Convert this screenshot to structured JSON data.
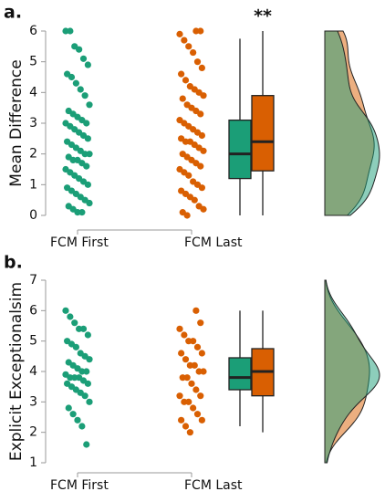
{
  "chart_data": [
    {
      "type": "raincloud",
      "panel_label": "a.",
      "ylabel": "Mean Difference",
      "annotation": "**",
      "categories": [
        "FCM First",
        "FCM Last"
      ],
      "ylim": [
        0,
        6
      ],
      "yticks": [
        0,
        1,
        2,
        3,
        4,
        5,
        6
      ],
      "groups": [
        {
          "color": "#1b9e77",
          "points": [
            6,
            6,
            5.5,
            5.4,
            5.1,
            4.9,
            4.6,
            4.5,
            4.3,
            4.1,
            3.9,
            3.6,
            3.4,
            3.3,
            3.2,
            3.1,
            3.0,
            3.0,
            2.9,
            2.8,
            2.7,
            2.6,
            2.5,
            2.4,
            2.3,
            2.2,
            2.1,
            2.0,
            2.0,
            1.9,
            1.8,
            1.8,
            1.7,
            1.6,
            1.5,
            1.4,
            1.3,
            1.2,
            1.1,
            1.0,
            0.9,
            0.8,
            0.7,
            0.6,
            0.5,
            0.4,
            0.3,
            0.2,
            0.1,
            0.1
          ],
          "box": {
            "min": 0,
            "q1": 1.2,
            "median": 2.0,
            "q3": 3.1,
            "max": 5.75
          }
        },
        {
          "color": "#d95f02",
          "points": [
            6,
            6,
            5.9,
            5.7,
            5.5,
            5.3,
            5.0,
            4.8,
            4.6,
            4.4,
            4.2,
            4.1,
            4.0,
            3.9,
            3.8,
            3.6,
            3.5,
            3.4,
            3.3,
            3.1,
            3.0,
            2.9,
            2.8,
            2.7,
            2.6,
            2.5,
            2.4,
            2.4,
            2.3,
            2.2,
            2.1,
            2.0,
            1.9,
            1.8,
            1.7,
            1.6,
            1.5,
            1.4,
            1.3,
            1.1,
            1.0,
            0.9,
            0.8,
            0.7,
            0.6,
            0.5,
            0.3,
            0.2,
            0.1,
            0
          ],
          "box": {
            "min": 0,
            "q1": 1.45,
            "median": 2.4,
            "q3": 3.9,
            "max": 6
          }
        }
      ]
    },
    {
      "type": "raincloud",
      "panel_label": "b.",
      "ylabel": "Explicit Exceptionalsim",
      "categories": [
        "FCM First",
        "FCM Last"
      ],
      "ylim": [
        1,
        7
      ],
      "yticks": [
        1,
        2,
        3,
        4,
        5,
        6,
        7
      ],
      "groups": [
        {
          "color": "#1b9e77",
          "points": [
            6,
            5.8,
            5.6,
            5.4,
            5.4,
            5.2,
            5.0,
            4.9,
            4.8,
            4.6,
            4.5,
            4.4,
            4.3,
            4.2,
            4.1,
            4.0,
            4.0,
            3.9,
            3.8,
            3.8,
            3.8,
            3.7,
            3.6,
            3.6,
            3.5,
            3.4,
            3.3,
            3.2,
            3.0,
            2.8,
            2.6,
            2.4,
            2.2,
            1.6
          ],
          "box": {
            "min": 2.2,
            "q1": 3.4,
            "median": 3.8,
            "q3": 4.45,
            "max": 6
          }
        },
        {
          "color": "#d95f02",
          "points": [
            6,
            5.6,
            5.4,
            5.2,
            5.0,
            5.0,
            4.8,
            4.6,
            4.6,
            4.4,
            4.2,
            4.2,
            4.0,
            4.0,
            3.8,
            3.8,
            3.6,
            3.4,
            3.2,
            3.2,
            3.0,
            3.0,
            2.8,
            2.6,
            2.4,
            2.4,
            2.2,
            2.0
          ],
          "box": {
            "min": 2,
            "q1": 3.2,
            "median": 4.0,
            "q3": 4.75,
            "max": 6
          }
        }
      ]
    }
  ]
}
